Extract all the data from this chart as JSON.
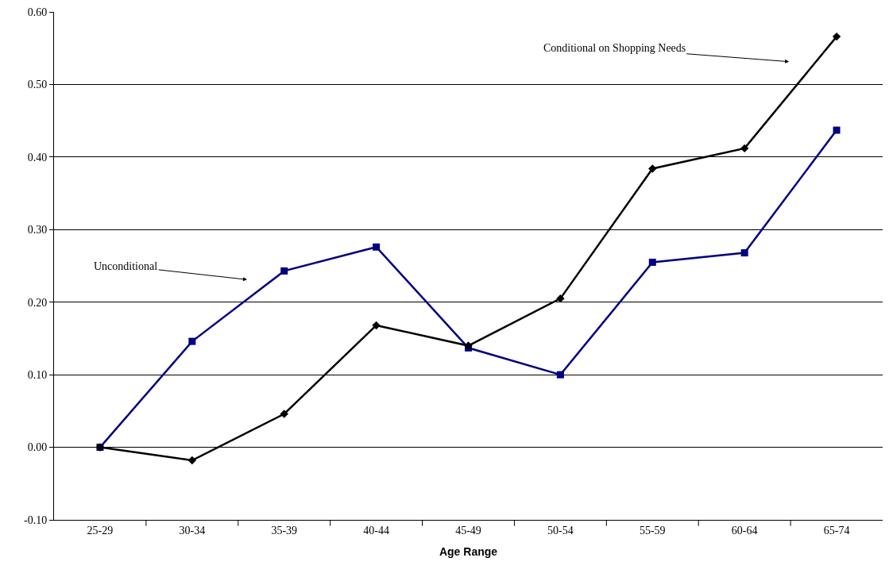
{
  "chart_data": {
    "type": "line",
    "xlabel": "Age Range",
    "categories": [
      "25-29",
      "30-34",
      "35-39",
      "40-44",
      "45-49",
      "50-54",
      "55-59",
      "60-64",
      "65-74"
    ],
    "series": [
      {
        "color": "#000000",
        "marker": "diamond",
        "values": [
          0.0,
          -0.018,
          0.046,
          0.168,
          0.14,
          0.205,
          0.384,
          0.412,
          0.566
        ]
      },
      {
        "color": "#000080",
        "marker": "square",
        "values": [
          0.0,
          0.146,
          0.243,
          0.276,
          0.137,
          0.1,
          0.255,
          0.268,
          0.437
        ]
      }
    ],
    "ylim": [
      -0.1,
      0.6
    ],
    "yticks": [
      {
        "value": -0.1,
        "label": "-0.10"
      },
      {
        "value": 0.0,
        "label": "0.00"
      },
      {
        "value": 0.1,
        "label": "0.10"
      },
      {
        "value": 0.2,
        "label": "0.20"
      },
      {
        "value": 0.3,
        "label": "0.30"
      },
      {
        "value": 0.4,
        "label": "0.40"
      },
      {
        "value": 0.5,
        "label": "0.50"
      },
      {
        "value": 0.6,
        "label": "0.60"
      }
    ],
    "annotations": [
      "Conditional on Shopping Needs",
      "Unconditional"
    ],
    "grid": "y",
    "line_style": "solid"
  }
}
